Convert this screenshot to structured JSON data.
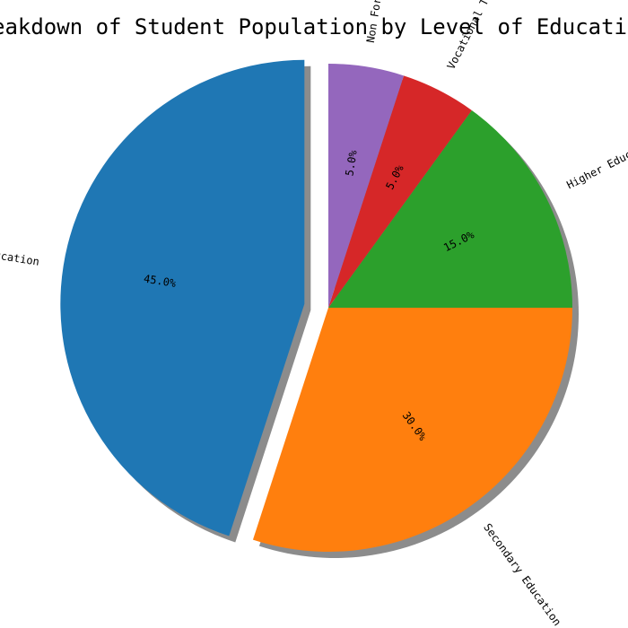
{
  "chart_data": {
    "type": "pie",
    "title": "Breakdown of Student Population by Level of Education",
    "categories": [
      "Primary Education",
      "Secondary Education",
      "Higher Education",
      "Vocational Training",
      "Non Formal Education"
    ],
    "values": [
      45,
      30,
      15,
      5,
      5
    ],
    "percent_labels": [
      "45.0%",
      "30.0%",
      "15.0%",
      "5.0%",
      "5.0%"
    ],
    "colors": [
      "#1f77b4",
      "#ff7f0e",
      "#2ca02c",
      "#d62728",
      "#9467bd"
    ],
    "exploded": [
      "Primary Education"
    ],
    "shadow": true,
    "legend": "none"
  }
}
